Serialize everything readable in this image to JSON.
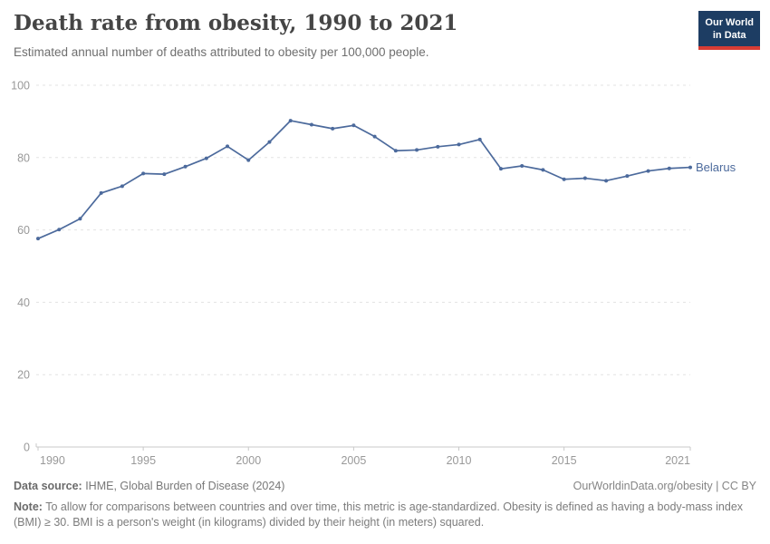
{
  "header": {
    "title": "Death rate from obesity, 1990 to 2021",
    "subtitle": "Estimated annual number of deaths attributed to obesity per 100,000 people.",
    "logo": {
      "line1": "Our World",
      "line2": "in Data"
    }
  },
  "chart_data": {
    "type": "line",
    "title": "Death rate from obesity, 1990 to 2021",
    "xlabel": "",
    "ylabel": "",
    "xlim": [
      1990,
      2021
    ],
    "ylim": [
      0,
      100
    ],
    "xticks": [
      1990,
      1995,
      2000,
      2005,
      2010,
      2015,
      2021
    ],
    "yticks": [
      0,
      20,
      40,
      60,
      80,
      100
    ],
    "grid": "horizontal-dashed",
    "legend_position": "end-of-line-label",
    "series": [
      {
        "name": "Belarus",
        "color": "#4C6A9C",
        "x": [
          1990,
          1991,
          1992,
          1993,
          1994,
          1995,
          1996,
          1997,
          1998,
          1999,
          2000,
          2001,
          2002,
          2003,
          2004,
          2005,
          2006,
          2007,
          2008,
          2009,
          2010,
          2011,
          2012,
          2013,
          2014,
          2015,
          2016,
          2017,
          2018,
          2019,
          2020,
          2021
        ],
        "values": [
          57.6,
          60.1,
          63.1,
          70.2,
          72.1,
          75.6,
          75.4,
          77.5,
          79.8,
          83.1,
          79.3,
          84.3,
          90.2,
          89.1,
          88.0,
          88.9,
          85.8,
          81.9,
          82.1,
          83.0,
          83.6,
          85.0,
          76.9,
          77.7,
          76.6,
          74.0,
          74.3,
          73.6,
          74.9,
          76.3,
          77.0,
          77.3
        ]
      }
    ]
  },
  "footer": {
    "datasource_label": "Data source:",
    "datasource_text": " IHME, Global Burden of Disease (2024)",
    "attribution": "OurWorldinData.org/obesity | CC BY",
    "note_label": "Note:",
    "note_text": " To allow for comparisons between countries and over time, this metric is age-standardized. Obesity is defined as having a body-mass index (BMI) ≥ 30. BMI is a person's weight (in kilograms) divided by their height (in meters) squared."
  },
  "colors": {
    "line": "#4C6A9C",
    "gridline": "#e3e3e3",
    "axis": "#c9c9c9",
    "axis_text": "#999999",
    "logo_bg": "#1d3d63",
    "logo_red": "#d73c34"
  }
}
